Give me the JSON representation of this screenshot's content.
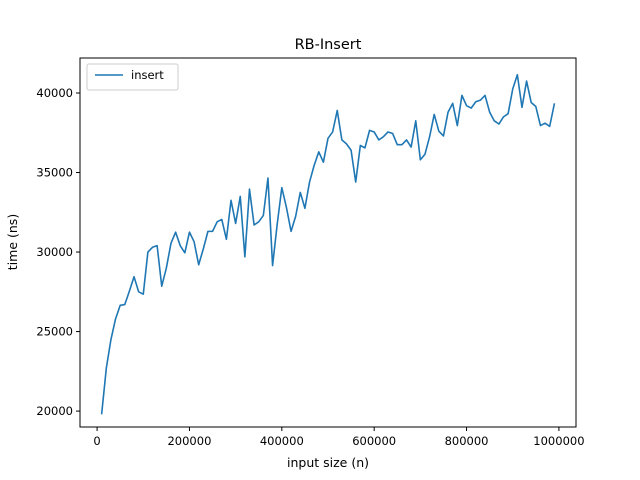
{
  "chart_data": {
    "type": "line",
    "title": "RB-Insert",
    "xlabel": "input size (n)",
    "ylabel": "time (ns)",
    "xlim": [
      -37000,
      1037000
    ],
    "ylim": [
      19000,
      42200
    ],
    "xticks": [
      0,
      200000,
      400000,
      600000,
      800000,
      1000000
    ],
    "xtick_labels": [
      "0",
      "200000",
      "400000",
      "600000",
      "800000",
      "1000000"
    ],
    "yticks": [
      20000,
      25000,
      30000,
      35000,
      40000
    ],
    "ytick_labels": [
      "20000",
      "25000",
      "30000",
      "35000",
      "40000"
    ],
    "grid": false,
    "legend": {
      "position": "top-left"
    },
    "series": [
      {
        "name": "insert",
        "color": "#1f77b4",
        "x": [
          10000,
          20000,
          30000,
          40000,
          50000,
          60000,
          70000,
          80000,
          90000,
          100000,
          110000,
          120000,
          130000,
          140000,
          150000,
          160000,
          170000,
          180000,
          190000,
          200000,
          210000,
          220000,
          230000,
          240000,
          250000,
          260000,
          270000,
          280000,
          290000,
          300000,
          310000,
          320000,
          330000,
          340000,
          350000,
          360000,
          370000,
          380000,
          390000,
          400000,
          410000,
          420000,
          430000,
          440000,
          450000,
          460000,
          470000,
          480000,
          490000,
          500000,
          510000,
          520000,
          530000,
          540000,
          550000,
          560000,
          570000,
          580000,
          590000,
          600000,
          610000,
          620000,
          630000,
          640000,
          650000,
          660000,
          670000,
          680000,
          690000,
          700000,
          710000,
          720000,
          730000,
          740000,
          750000,
          760000,
          770000,
          780000,
          790000,
          800000,
          810000,
          820000,
          830000,
          840000,
          850000,
          860000,
          870000,
          880000,
          890000,
          900000,
          910000,
          920000,
          930000,
          940000,
          950000,
          960000,
          970000,
          980000,
          990000
        ],
        "values": [
          19850,
          22700,
          24500,
          25800,
          26650,
          26700,
          27550,
          28450,
          27500,
          27350,
          30000,
          30300,
          30400,
          27850,
          29000,
          30550,
          31250,
          30400,
          29950,
          31250,
          30650,
          29200,
          30200,
          31300,
          31300,
          31900,
          32050,
          30800,
          33250,
          31800,
          33500,
          29700,
          33950,
          31700,
          31900,
          32300,
          34650,
          29150,
          31750,
          34050,
          32800,
          31300,
          32250,
          33750,
          32750,
          34400,
          35450,
          36300,
          35650,
          37150,
          37550,
          38900,
          37050,
          36800,
          36400,
          34400,
          36700,
          36550,
          37650,
          37550,
          37050,
          37250,
          37550,
          37450,
          36750,
          36750,
          37050,
          36600,
          38250,
          35800,
          36150,
          37250,
          38650,
          37600,
          37300,
          38800,
          39350,
          37950,
          39850,
          39200,
          39050,
          39450,
          39550,
          39850,
          38800,
          38250,
          38050,
          38500,
          38700,
          40250,
          41150,
          39100,
          40750,
          39400,
          39150,
          37950,
          38100,
          37900,
          39300
        ]
      }
    ]
  }
}
